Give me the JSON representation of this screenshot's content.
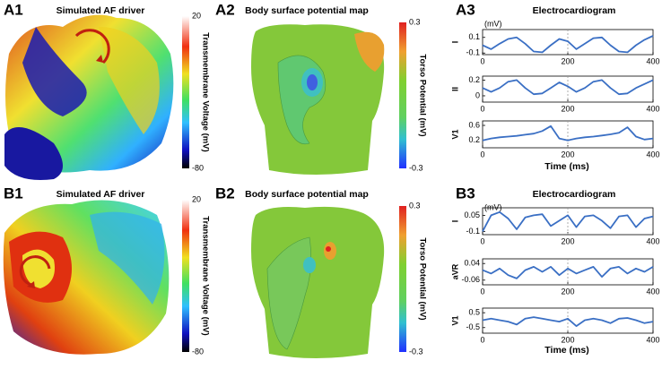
{
  "panels": [
    {
      "label": "A1",
      "title": "Simulated AF driver",
      "colorbar_label": "Transmembrane  Voltage (mV)",
      "colorbar_ticks": [
        20,
        -80
      ]
    },
    {
      "label": "A2",
      "title": "Body surface potential map",
      "colorbar_label": "Torso Potential (mV)",
      "colorbar_ticks": [
        0.3,
        -0.3
      ]
    },
    {
      "label": "A3",
      "title": "Electrocardiogram",
      "unit": "(mV)",
      "xlabel": "Time (ms)"
    },
    {
      "label": "B1",
      "title": "Simulated AF driver",
      "colorbar_label": "Transmembrane  Voltage (mV)",
      "colorbar_ticks": [
        20,
        -80
      ]
    },
    {
      "label": "B2",
      "title": "Body surface potential map",
      "colorbar_label": "Torso Potential (mV)",
      "colorbar_ticks": [
        0.3,
        -0.3
      ]
    },
    {
      "label": "B3",
      "title": "Electrocardiogram",
      "unit": "(mV)",
      "xlabel": "Time (ms)"
    }
  ],
  "chart_data": [
    {
      "type": "line",
      "ylabel": "I",
      "color": "#3a6fc4",
      "x": [
        0,
        20,
        40,
        60,
        80,
        100,
        120,
        140,
        160,
        180,
        200,
        220,
        240,
        260,
        280,
        300,
        320,
        340,
        360,
        380,
        400
      ],
      "values": [
        0,
        -0.05,
        0.02,
        0.08,
        0.1,
        0.02,
        -0.08,
        -0.09,
        0,
        0.08,
        0.05,
        -0.05,
        0.02,
        0.09,
        0.1,
        0.0,
        -0.08,
        -0.09,
        0.0,
        0.07,
        0.12
      ],
      "xlim": [
        0,
        400
      ],
      "xticks": [
        0,
        200,
        400
      ],
      "ylim": [
        -0.12,
        0.2
      ],
      "yticks": [
        0.1,
        -0.1
      ]
    },
    {
      "type": "line",
      "ylabel": "II",
      "color": "#3a6fc4",
      "x": [
        0,
        20,
        40,
        60,
        80,
        100,
        120,
        140,
        160,
        180,
        200,
        220,
        240,
        260,
        280,
        300,
        320,
        340,
        360,
        380,
        400
      ],
      "values": [
        0.1,
        0.05,
        0.1,
        0.18,
        0.2,
        0.1,
        0.02,
        0.03,
        0.1,
        0.17,
        0.12,
        0.05,
        0.1,
        0.18,
        0.2,
        0.1,
        0.02,
        0.03,
        0.1,
        0.15,
        0.2
      ],
      "xlim": [
        0,
        400
      ],
      "xticks": [
        0,
        200,
        400
      ],
      "ylim": [
        -0.08,
        0.25
      ],
      "yticks": [
        0.2,
        0
      ]
    },
    {
      "type": "line",
      "ylabel": "V1",
      "color": "#3a6fc4",
      "x": [
        0,
        20,
        40,
        60,
        80,
        100,
        120,
        140,
        160,
        180,
        200,
        220,
        240,
        260,
        280,
        300,
        320,
        340,
        360,
        380,
        400
      ],
      "values": [
        0.2,
        0.25,
        0.28,
        0.3,
        0.32,
        0.35,
        0.38,
        0.45,
        0.58,
        0.25,
        0.2,
        0.25,
        0.28,
        0.3,
        0.33,
        0.36,
        0.4,
        0.55,
        0.3,
        0.22,
        0.25
      ],
      "xlim": [
        0,
        400
      ],
      "xticks": [
        0,
        200,
        400
      ],
      "ylim": [
        0,
        0.72
      ],
      "yticks": [
        0.6,
        0.2
      ]
    },
    {
      "type": "line",
      "ylabel": "I",
      "color": "#3a6fc4",
      "x": [
        0,
        20,
        40,
        60,
        80,
        100,
        120,
        140,
        160,
        180,
        200,
        220,
        240,
        260,
        280,
        300,
        320,
        340,
        360,
        380,
        400
      ],
      "values": [
        -0.1,
        0.05,
        0.08,
        0.02,
        -0.08,
        0.03,
        0.05,
        0.06,
        -0.05,
        0.0,
        0.05,
        -0.06,
        0.04,
        0.05,
        0.0,
        -0.07,
        0.04,
        0.05,
        -0.06,
        0.02,
        0.04
      ],
      "xlim": [
        0,
        400
      ],
      "xticks": [
        0,
        200,
        400
      ],
      "ylim": [
        -0.13,
        0.12
      ],
      "yticks": [
        0.05,
        -0.1
      ]
    },
    {
      "type": "line",
      "ylabel": "aVR",
      "color": "#3a6fc4",
      "x": [
        0,
        20,
        40,
        60,
        80,
        100,
        120,
        140,
        160,
        180,
        200,
        220,
        240,
        260,
        280,
        300,
        320,
        340,
        360,
        380,
        400
      ],
      "values": [
        0,
        -0.02,
        0.01,
        -0.03,
        -0.05,
        0.0,
        0.02,
        -0.01,
        0.02,
        -0.03,
        0.01,
        -0.02,
        0.0,
        0.02,
        -0.04,
        0.01,
        0.02,
        -0.02,
        0.01,
        -0.01,
        0.02
      ],
      "xlim": [
        0,
        400
      ],
      "xticks": [
        0,
        200,
        400
      ],
      "ylim": [
        -0.088,
        0.068
      ],
      "yticks": [
        0.04,
        -0.06
      ]
    },
    {
      "type": "line",
      "ylabel": "V1",
      "color": "#3a6fc4",
      "x": [
        0,
        20,
        40,
        60,
        80,
        100,
        120,
        140,
        160,
        180,
        200,
        220,
        240,
        260,
        280,
        300,
        320,
        340,
        360,
        380,
        400
      ],
      "values": [
        0,
        0.1,
        0.0,
        -0.1,
        -0.3,
        0.1,
        0.2,
        0.1,
        0.0,
        -0.1,
        0.1,
        -0.4,
        0.0,
        0.1,
        0.0,
        -0.2,
        0.1,
        0.15,
        0.0,
        -0.2,
        -0.1
      ],
      "xlim": [
        0,
        400
      ],
      "xticks": [
        0,
        200,
        400
      ],
      "ylim": [
        -0.875,
        0.81
      ],
      "yticks": [
        0.5,
        -0.5
      ]
    }
  ]
}
